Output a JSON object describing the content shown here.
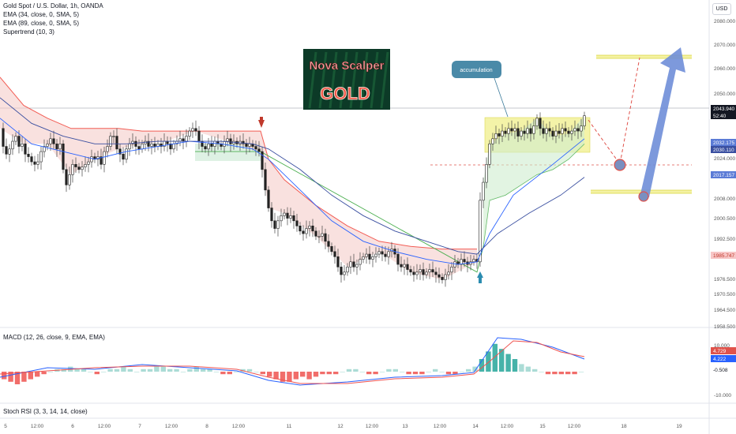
{
  "header": {
    "title": "Gold Spot / U.S. Dollar, 1h, OANDA",
    "currency": "USD"
  },
  "indicators": [
    "EMA (34, close, 0, SMA, 5)",
    "EMA (89, close, 0, SMA, 5)",
    "Supertrend (10, 3)"
  ],
  "logo": {
    "line1": "Nova Scalper",
    "line2": "GOLD"
  },
  "annotation": {
    "label": "accumulation"
  },
  "price_badges": [
    {
      "value": "2043.940",
      "sub": "52:40",
      "color": "#131722",
      "text_color": "#ffffff"
    },
    {
      "value": "2032.175",
      "color": "#5b7bd6",
      "text_color": "#ffffff"
    },
    {
      "value": "2030.110",
      "color": "#3a4fa0",
      "text_color": "#ffffff"
    },
    {
      "value": "2017.157",
      "color": "#5b7bd6",
      "text_color": "#ffffff"
    },
    {
      "value": "1985.747",
      "color": "#f7c6c6",
      "text_color": "#c0392b"
    }
  ],
  "macd": {
    "label": "MACD (12, 26, close, 9, EMA, EMA)",
    "ticks": [
      "10.000",
      "-10.000"
    ],
    "badges": [
      {
        "value": "4.729",
        "color": "#e0524b",
        "text_color": "#ffffff"
      },
      {
        "value": "4.222",
        "color": "#2962ff",
        "text_color": "#ffffff"
      },
      {
        "value": "-0.508",
        "color": "#ffffff",
        "text_color": "#131722"
      }
    ]
  },
  "stoch": {
    "label": "Stoch RSI (3, 3, 14, 14, close)"
  },
  "chart_data": {
    "type": "candlestick",
    "y_ticks": [
      "2080.000",
      "2070.000",
      "2060.000",
      "2050.000",
      "2030.000",
      "2024.000",
      "2008.000",
      "2000.500",
      "1992.500",
      "1976.500",
      "1970.500",
      "1964.500",
      "1958.500"
    ],
    "x_ticks": [
      "5",
      "12:00",
      "6",
      "12:00",
      "7",
      "12:00",
      "8",
      "12:00",
      "11",
      "12",
      "12:00",
      "13",
      "12:00",
      "14",
      "12:00",
      "15",
      "12:00",
      "18",
      "19"
    ],
    "close_path": [
      [
        0,
        2036
      ],
      [
        4,
        2029
      ],
      [
        8,
        2026
      ],
      [
        12,
        2028
      ],
      [
        16,
        2031
      ],
      [
        20,
        2033
      ],
      [
        24,
        2029
      ],
      [
        28,
        2030
      ],
      [
        32,
        2026
      ],
      [
        36,
        2025
      ],
      [
        40,
        2023
      ],
      [
        44,
        2022
      ],
      [
        48,
        2023
      ],
      [
        52,
        2027
      ],
      [
        56,
        2029
      ],
      [
        60,
        2030
      ],
      [
        64,
        2032
      ],
      [
        68,
        2030
      ],
      [
        72,
        2028
      ],
      [
        76,
        2030
      ],
      [
        80,
        2020
      ],
      [
        84,
        2014
      ],
      [
        88,
        2018
      ],
      [
        92,
        2022
      ],
      [
        96,
        2021
      ],
      [
        100,
        2020
      ],
      [
        104,
        2021
      ],
      [
        108,
        2022
      ],
      [
        112,
        2023
      ],
      [
        116,
        2025
      ],
      [
        120,
        2024
      ],
      [
        124,
        2025
      ],
      [
        128,
        2022
      ],
      [
        132,
        2027
      ],
      [
        136,
        2029
      ],
      [
        140,
        2033
      ],
      [
        144,
        2033
      ],
      [
        148,
        2028
      ],
      [
        152,
        2026
      ],
      [
        156,
        2024
      ],
      [
        160,
        2028
      ],
      [
        164,
        2030
      ],
      [
        168,
        2031
      ],
      [
        172,
        2029
      ],
      [
        176,
        2028
      ],
      [
        180,
        2030
      ],
      [
        184,
        2031
      ],
      [
        188,
        2029
      ],
      [
        192,
        2030
      ],
      [
        196,
        2029
      ],
      [
        200,
        2030
      ],
      [
        204,
        2029
      ],
      [
        208,
        2031
      ],
      [
        212,
        2030
      ],
      [
        216,
        2028
      ],
      [
        220,
        2030
      ],
      [
        224,
        2031
      ],
      [
        228,
        2032
      ],
      [
        232,
        2031
      ],
      [
        236,
        2033
      ],
      [
        240,
        2035
      ],
      [
        244,
        2036
      ],
      [
        248,
        2035
      ],
      [
        252,
        2031
      ],
      [
        256,
        2029
      ],
      [
        260,
        2028
      ],
      [
        264,
        2030
      ],
      [
        268,
        2029
      ],
      [
        272,
        2031
      ],
      [
        276,
        2030
      ],
      [
        280,
        2029
      ],
      [
        284,
        2031
      ],
      [
        288,
        2032
      ],
      [
        292,
        2030
      ],
      [
        296,
        2031
      ],
      [
        300,
        2030
      ],
      [
        304,
        2031
      ],
      [
        308,
        2030
      ],
      [
        312,
        2029
      ],
      [
        316,
        2030
      ],
      [
        320,
        2029
      ],
      [
        324,
        2028
      ],
      [
        328,
        2027
      ],
      [
        332,
        2020
      ],
      [
        336,
        2012
      ],
      [
        340,
        2005
      ],
      [
        344,
        2000
      ],
      [
        348,
        1997
      ],
      [
        352,
        2000
      ],
      [
        356,
        2002
      ],
      [
        360,
        2003
      ],
      [
        364,
        2001
      ],
      [
        368,
        2002
      ],
      [
        372,
        2000
      ],
      [
        376,
        1998
      ],
      [
        380,
        1996
      ],
      [
        384,
        1995
      ],
      [
        388,
        1997
      ],
      [
        392,
        1998
      ],
      [
        396,
        1996
      ],
      [
        400,
        1994
      ],
      [
        404,
        1994
      ],
      [
        408,
        1995
      ],
      [
        412,
        1992
      ],
      [
        416,
        1990
      ],
      [
        420,
        1988
      ],
      [
        424,
        1986
      ],
      [
        428,
        1982
      ],
      [
        432,
        1979
      ],
      [
        436,
        1980
      ],
      [
        440,
        1982
      ],
      [
        444,
        1984
      ],
      [
        448,
        1982
      ],
      [
        452,
        1983
      ],
      [
        456,
        1985
      ],
      [
        460,
        1986
      ],
      [
        464,
        1987
      ],
      [
        468,
        1985
      ],
      [
        472,
        1986
      ],
      [
        476,
        1987
      ],
      [
        480,
        1988
      ],
      [
        484,
        1987
      ],
      [
        488,
        1986
      ],
      [
        492,
        1988
      ],
      [
        496,
        1989
      ],
      [
        500,
        1987
      ],
      [
        504,
        1983
      ],
      [
        508,
        1982
      ],
      [
        512,
        1983
      ],
      [
        516,
        1981
      ],
      [
        520,
        1980
      ],
      [
        524,
        1979
      ],
      [
        528,
        1980
      ],
      [
        532,
        1981
      ],
      [
        536,
        1979
      ],
      [
        540,
        1980
      ],
      [
        544,
        1981
      ],
      [
        548,
        1980
      ],
      [
        552,
        1979
      ],
      [
        556,
        1978
      ],
      [
        560,
        1977
      ],
      [
        564,
        1979
      ],
      [
        568,
        1980
      ],
      [
        572,
        1982
      ],
      [
        576,
        1984
      ],
      [
        580,
        1983
      ],
      [
        584,
        1985
      ],
      [
        588,
        1984
      ],
      [
        592,
        1983
      ],
      [
        596,
        1984
      ],
      [
        600,
        1985
      ],
      [
        604,
        1984
      ],
      [
        608,
        2008
      ],
      [
        612,
        2015
      ],
      [
        616,
        2022
      ],
      [
        620,
        2030
      ],
      [
        624,
        2032
      ],
      [
        628,
        2034
      ],
      [
        632,
        2033
      ],
      [
        636,
        2035
      ],
      [
        640,
        2034
      ],
      [
        644,
        2036
      ],
      [
        648,
        2035
      ],
      [
        652,
        2036
      ],
      [
        656,
        2033
      ],
      [
        660,
        2035
      ],
      [
        664,
        2034
      ],
      [
        668,
        2036
      ],
      [
        672,
        2034
      ],
      [
        676,
        2037
      ],
      [
        680,
        2040
      ],
      [
        684,
        2036
      ],
      [
        688,
        2034
      ],
      [
        692,
        2036
      ],
      [
        696,
        2035
      ],
      [
        700,
        2033
      ],
      [
        704,
        2035
      ],
      [
        708,
        2034
      ],
      [
        712,
        2036
      ],
      [
        716,
        2035
      ],
      [
        720,
        2034
      ],
      [
        724,
        2035
      ],
      [
        728,
        2036
      ],
      [
        732,
        2035
      ],
      [
        736,
        2037
      ],
      [
        740,
        2041
      ]
    ],
    "ema34": [
      [
        0,
        2040
      ],
      [
        40,
        2030
      ],
      [
        80,
        2027
      ],
      [
        120,
        2024
      ],
      [
        160,
        2027
      ],
      [
        200,
        2029
      ],
      [
        240,
        2031
      ],
      [
        280,
        2030
      ],
      [
        320,
        2028
      ],
      [
        340,
        2024
      ],
      [
        380,
        2012
      ],
      [
        420,
        2000
      ],
      [
        460,
        1992
      ],
      [
        500,
        1988
      ],
      [
        540,
        1985
      ],
      [
        580,
        1983
      ],
      [
        604,
        1984
      ],
      [
        620,
        1995
      ],
      [
        650,
        2010
      ],
      [
        700,
        2022
      ],
      [
        740,
        2032
      ]
    ],
    "ema89": [
      [
        0,
        2048
      ],
      [
        40,
        2038
      ],
      [
        80,
        2033
      ],
      [
        120,
        2030
      ],
      [
        160,
        2030
      ],
      [
        200,
        2031
      ],
      [
        240,
        2031
      ],
      [
        280,
        2031
      ],
      [
        320,
        2030
      ],
      [
        340,
        2028
      ],
      [
        380,
        2020
      ],
      [
        420,
        2010
      ],
      [
        460,
        2002
      ],
      [
        500,
        1996
      ],
      [
        540,
        1992
      ],
      [
        580,
        1988
      ],
      [
        604,
        1987
      ],
      [
        630,
        1995
      ],
      [
        670,
        2003
      ],
      [
        710,
        2010
      ],
      [
        740,
        2017
      ]
    ],
    "supertrend_red": [
      [
        0,
        2056
      ],
      [
        30,
        2045
      ],
      [
        60,
        2040
      ],
      [
        90,
        2036
      ],
      [
        120,
        2036
      ],
      [
        150,
        2036
      ],
      [
        180,
        2035
      ],
      [
        210,
        2035
      ],
      [
        247,
        2035
      ],
      [
        330,
        2035
      ],
      [
        340,
        2024
      ],
      [
        360,
        2016
      ],
      [
        400,
        2006
      ],
      [
        440,
        1998
      ],
      [
        480,
        1992
      ],
      [
        520,
        1990
      ],
      [
        560,
        1989
      ],
      [
        604,
        1989
      ]
    ],
    "supertrend_green": [
      [
        247,
        2027
      ],
      [
        330,
        2027
      ],
      [
        604,
        1980
      ],
      [
        612,
        1990
      ],
      [
        620,
        2008
      ],
      [
        640,
        2010
      ],
      [
        660,
        2014
      ],
      [
        680,
        2018
      ],
      [
        700,
        2020
      ],
      [
        720,
        2024
      ],
      [
        740,
        2030
      ]
    ],
    "levels": [
      {
        "value": 2067,
        "from": 755,
        "to": 876,
        "kind": "zone"
      },
      {
        "value": 2012,
        "from": 748,
        "to": 876,
        "kind": "zone"
      },
      {
        "value": 2021,
        "from": 545,
        "to": 876,
        "kind": "dashed"
      }
    ],
    "accumulation_box": {
      "x0": 614,
      "x1": 747,
      "y_top": 2038,
      "y_bottom": 2026
    },
    "forecast": {
      "dashed": [
        [
          745,
          2032
        ],
        [
          785,
          2021
        ],
        [
          810,
          2065
        ]
      ],
      "arrow": [
        [
          815,
          2013
        ],
        [
          862,
          2068
        ]
      ],
      "circles": [
        [
          785,
          2021
        ],
        [
          815,
          2013
        ]
      ]
    },
    "macd_hist": [
      -3,
      -4,
      -5,
      -4,
      -3,
      -2,
      -1,
      0,
      1,
      1,
      2,
      1,
      1,
      0,
      -1,
      0,
      1,
      1,
      2,
      1,
      0,
      1,
      1,
      2,
      2,
      1,
      1,
      0,
      1,
      2,
      1,
      1,
      0,
      -1,
      -1,
      0,
      1,
      1,
      0,
      -1,
      -2,
      -3,
      -4,
      -4,
      -3,
      -2,
      -3,
      -2,
      -1,
      -1,
      -1,
      0,
      1,
      1,
      0,
      -1,
      -1,
      0,
      1,
      1,
      0,
      -1,
      -1,
      -1,
      0,
      1,
      0,
      -1,
      -1,
      0,
      1,
      2,
      5,
      8,
      11,
      9,
      7,
      5,
      3,
      2,
      1,
      0,
      -1,
      -1,
      -1,
      -1,
      -1,
      0
    ]
  }
}
